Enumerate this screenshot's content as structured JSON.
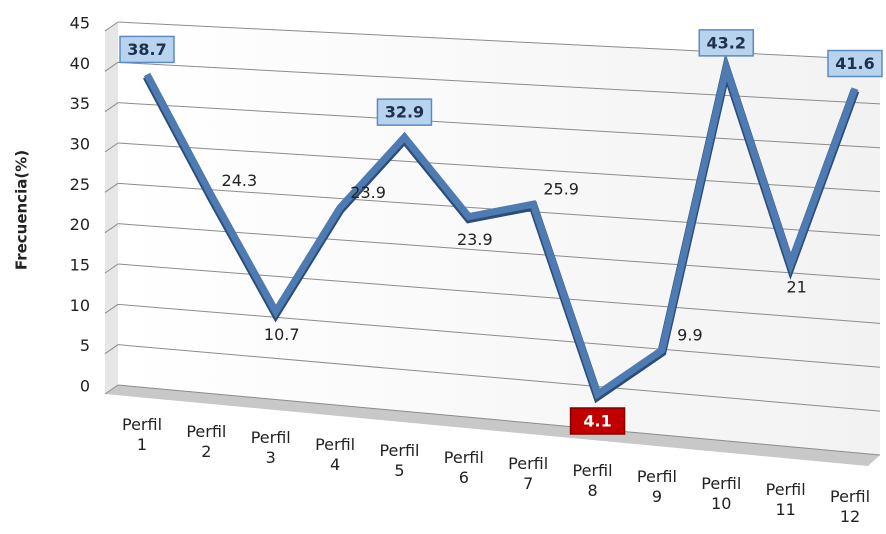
{
  "chart_data": {
    "type": "line",
    "y_label": "Frecuencia(%)",
    "categories": [
      "Perfil 1",
      "Perfil 2",
      "Perfil 3",
      "Perfil 4",
      "Perfil 5",
      "Perfil 6",
      "Perfil 7",
      "Perfil 8",
      "Perfil 9",
      "Perfil 10",
      "Perfil 11",
      "Perfil 12"
    ],
    "series": [
      {
        "name": "Frecuencia",
        "color": "#4f7bb3",
        "values": [
          38.7,
          24.3,
          10.7,
          23.9,
          32.9,
          23.9,
          25.9,
          4.1,
          9.9,
          43.2,
          21,
          41.6
        ]
      }
    ],
    "ylim": [
      0,
      45
    ],
    "yticks": [
      0,
      5,
      10,
      15,
      20,
      25,
      30,
      35,
      40,
      45
    ],
    "grid": true
  }
}
